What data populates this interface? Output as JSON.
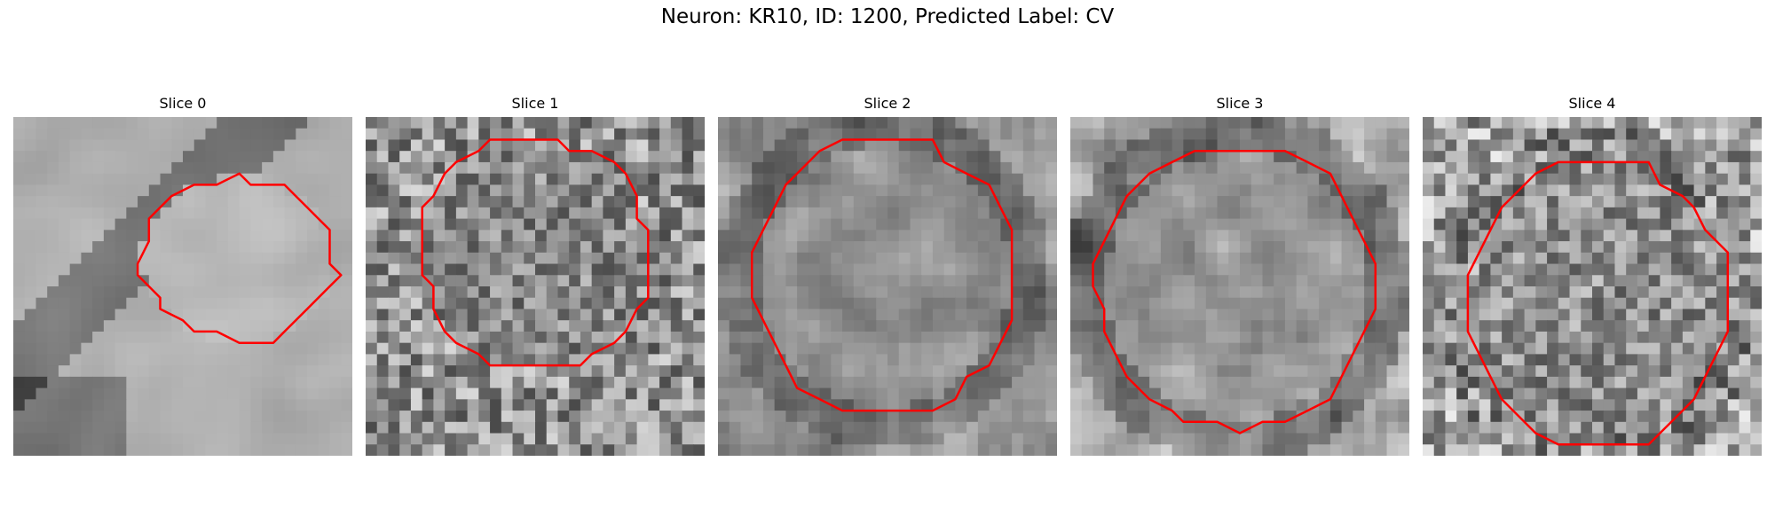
{
  "figure": {
    "title": "Neuron: KR10, ID: 1200, Predicted Label: CV"
  },
  "panels": [
    {
      "title": "Slice 0"
    },
    {
      "title": "Slice 1"
    },
    {
      "title": "Slice 2"
    },
    {
      "title": "Slice 3"
    },
    {
      "title": "Slice 4"
    }
  ],
  "colors": {
    "contour": "#ff0000",
    "background": "#ffffff"
  }
}
